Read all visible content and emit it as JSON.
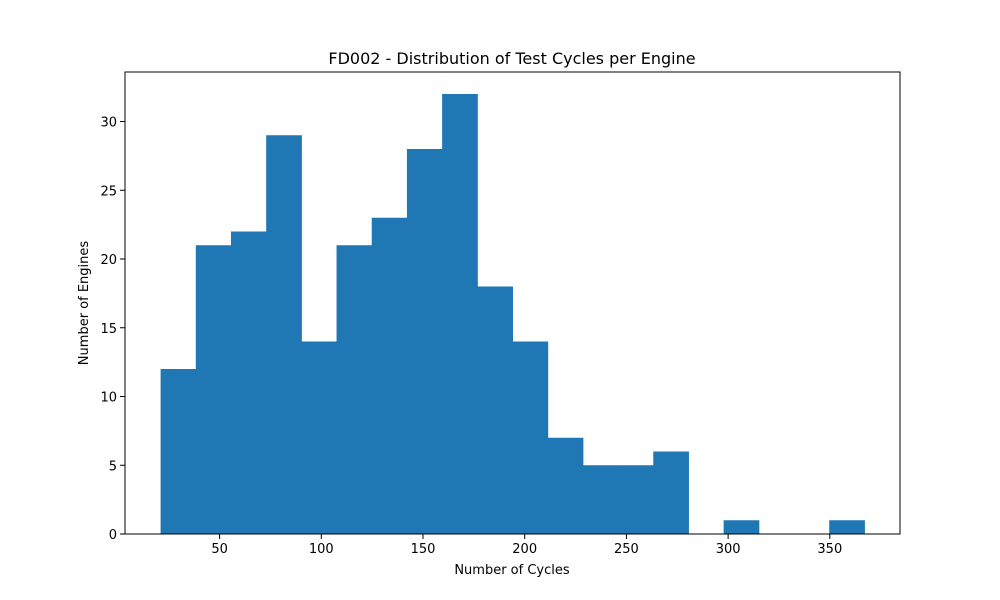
{
  "chart_data": {
    "type": "bar",
    "title": "FD002 - Distribution of Test Cycles per Engine",
    "xlabel": "Number of Cycles",
    "ylabel": "Number of Engines",
    "xlim": [
      3.5,
      384.5
    ],
    "ylim": [
      0,
      33.6
    ],
    "x_ticks": [
      50,
      100,
      150,
      200,
      250,
      300,
      350
    ],
    "y_ticks": [
      0,
      5,
      10,
      15,
      20,
      25,
      30
    ],
    "bin_edges": [
      21,
      38.3,
      55.6,
      72.9,
      90.2,
      107.5,
      124.8,
      142.1,
      159.4,
      176.7,
      194,
      211.3,
      228.6,
      245.9,
      263.2,
      280.5,
      297.8,
      315.1,
      332.4,
      349.7,
      367
    ],
    "values": [
      12,
      21,
      22,
      29,
      14,
      21,
      23,
      28,
      32,
      18,
      14,
      7,
      5,
      5,
      6,
      0,
      1,
      0,
      0,
      1
    ],
    "bar_color": "#1f77b4",
    "grid": false
  }
}
